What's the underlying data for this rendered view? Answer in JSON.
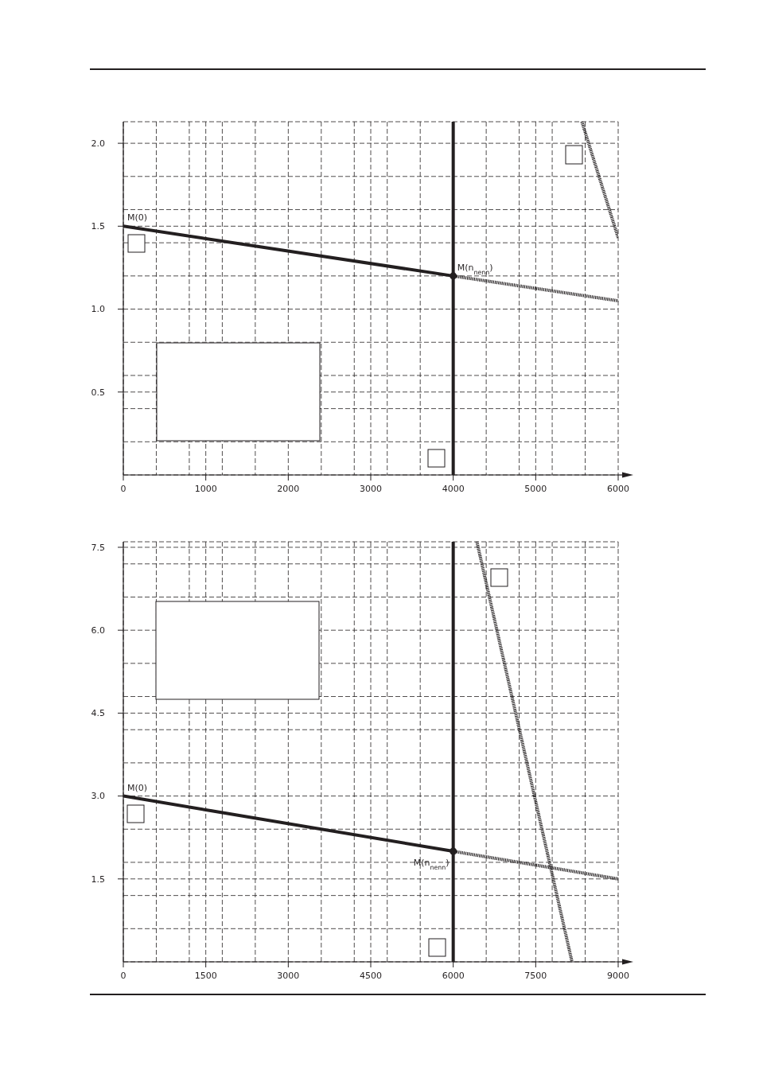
{
  "chart_data": [
    {
      "type": "line",
      "xlim": [
        0,
        6000
      ],
      "ylim": [
        0,
        2.13
      ],
      "xticks": [
        0,
        {
          "value": 400,
          "label": null
        },
        {
          "value": 800,
          "label": null
        },
        1000,
        {
          "value": 1200,
          "label": null
        },
        {
          "value": 1600,
          "label": null
        },
        2000,
        {
          "value": 2400,
          "label": null
        },
        {
          "value": 2800,
          "label": null
        },
        3000,
        {
          "value": 3200,
          "label": null
        },
        {
          "value": 3600,
          "label": null
        },
        4000,
        {
          "value": 4400,
          "label": null
        },
        {
          "value": 4800,
          "label": null
        },
        5000,
        {
          "value": 5200,
          "label": null
        },
        {
          "value": 5600,
          "label": null
        },
        6000
      ],
      "yticks": [
        {
          "value": 0.2,
          "label": null
        },
        {
          "value": 0.4,
          "label": null
        },
        0.5,
        {
          "value": 0.6,
          "label": null
        },
        {
          "value": 0.8,
          "label": null
        },
        {
          "value": 1,
          "label": "1.0"
        },
        {
          "value": 1.2,
          "label": null
        },
        {
          "value": 1.4,
          "label": null
        },
        1.5,
        {
          "value": 1.6,
          "label": null
        },
        {
          "value": 1.8,
          "label": null
        },
        {
          "value": 2,
          "label": "2.0"
        }
      ],
      "grid": true,
      "marker": "none",
      "series": [
        {
          "x": [
            0,
            4000
          ],
          "values": [
            1.5,
            1.2
          ],
          "color": "#231f20",
          "line_style": "solid"
        },
        {
          "x": [
            4000,
            6000
          ],
          "values": [
            1.2,
            1.05
          ],
          "color": "#231f20",
          "line_style": "dotted"
        },
        {
          "x": [
            5560,
            6000
          ],
          "values": [
            2.13,
            1.43
          ],
          "color": "#231f20",
          "line_style": "dotted"
        },
        {
          "type": "scatter",
          "x": [
            4000
          ],
          "values": [
            1.2
          ],
          "color": "#231f20",
          "marker": "circle"
        }
      ],
      "ref_lines": [
        {
          "axis": "x",
          "value": 4000,
          "color": "#231f20"
        }
      ],
      "annotations": [
        {
          "text": "M(0)",
          "x": 0,
          "y": 1.5
        },
        {
          "text": "M(n$_{nenn}$)",
          "x": 4000,
          "y": 1.2
        }
      ]
    },
    {
      "type": "line",
      "xlim": [
        0,
        9000
      ],
      "ylim": [
        0,
        7.6
      ],
      "xticks": [
        0,
        {
          "value": 600,
          "label": null
        },
        {
          "value": 1200,
          "label": null
        },
        1500,
        {
          "value": 1800,
          "label": null
        },
        {
          "value": 2400,
          "label": null
        },
        3000,
        {
          "value": 3600,
          "label": null
        },
        {
          "value": 4200,
          "label": null
        },
        4500,
        {
          "value": 4800,
          "label": null
        },
        {
          "value": 5400,
          "label": null
        },
        6000,
        {
          "value": 6600,
          "label": null
        },
        {
          "value": 7200,
          "label": null
        },
        7500,
        {
          "value": 7800,
          "label": null
        },
        {
          "value": 8400,
          "label": null
        },
        9000
      ],
      "yticks": [
        {
          "value": 0.6,
          "label": null
        },
        {
          "value": 1.2,
          "label": null
        },
        1.5,
        {
          "value": 1.8,
          "label": null
        },
        {
          "value": 2.4,
          "label": null
        },
        {
          "value": 3,
          "label": "3.0"
        },
        {
          "value": 3.6,
          "label": null
        },
        {
          "value": 4.2,
          "label": null
        },
        4.5,
        {
          "value": 4.8,
          "label": null
        },
        {
          "value": 5.4,
          "label": null
        },
        {
          "value": 6,
          "label": "6.0"
        },
        {
          "value": 6.6,
          "label": null
        },
        {
          "value": 7.2,
          "label": null
        },
        7.5
      ],
      "grid": true,
      "marker": "none",
      "series": [
        {
          "x": [
            0,
            6000
          ],
          "values": [
            3,
            2
          ],
          "color": "#231f20",
          "line_style": "solid"
        },
        {
          "x": [
            6000,
            9000
          ],
          "values": [
            2,
            1.5
          ],
          "color": "#231f20",
          "line_style": "dotted"
        },
        {
          "x": [
            6430,
            8160
          ],
          "values": [
            7.6,
            0
          ],
          "color": "#231f20",
          "line_style": "dotted"
        },
        {
          "type": "scatter",
          "x": [
            6000
          ],
          "values": [
            2
          ],
          "color": "#231f20",
          "marker": "circle"
        }
      ],
      "ref_lines": [
        {
          "axis": "x",
          "value": 6000,
          "color": "#231f20"
        }
      ],
      "annotations": [
        {
          "text": "M(0)",
          "x": 0,
          "y": 3
        },
        {
          "text": "M(n$_{nenn}$)",
          "x": 6000,
          "y": 2
        }
      ]
    }
  ]
}
